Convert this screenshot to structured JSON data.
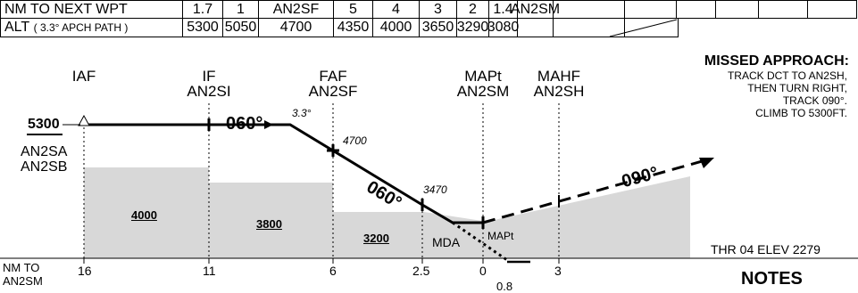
{
  "table": {
    "row1_label": "NM TO NEXT WPT",
    "row1_values": [
      "1.7",
      "1",
      "AN2SF",
      "5",
      "4",
      "3",
      "2",
      "1.4",
      "AN2SM",
      "",
      "",
      "",
      "",
      ""
    ],
    "row2_label_main": "ALT",
    "row2_label_sub": "( 3.3° APCH PATH )",
    "row2_values": [
      "5300",
      "5050",
      "4700",
      "4350",
      "4000",
      "3650",
      "3290",
      "3080"
    ]
  },
  "missed_approach": {
    "title": "MISSED APPROACH:",
    "lines": [
      "TRACK DCT TO AN2SH,",
      "THEN TURN RIGHT,",
      "TRACK 090°.",
      "CLIMB TO 5300FT."
    ]
  },
  "fixes": {
    "iaf": "IAF",
    "if_top": "IF",
    "if_name": "AN2SI",
    "faf_top": "FAF",
    "faf_name": "AN2SF",
    "mapt_top": "MAPt",
    "mapt_name": "AN2SM",
    "mahf_top": "MAHF",
    "mahf_name": "AN2SH"
  },
  "profile": {
    "initial_alt": "5300",
    "initial_names": [
      "AN2SA",
      "AN2SB"
    ],
    "course_inbound_1": "060°",
    "course_inbound_2": "060°",
    "course_missed": "090°",
    "glide_angle": "3.3°",
    "faf_alt": "4700",
    "step_alt": "3470",
    "mda_label": "MDA",
    "mapt_label": "MAPt",
    "msa_1": "4000",
    "msa_2": "3800",
    "msa_3": "3200",
    "threshold": "THR 04 ELEV 2279",
    "partial_value": "0.8"
  },
  "distance_scale": {
    "label_line1": "NM TO",
    "label_line2": "AN2SM",
    "ticks": [
      "16",
      "11",
      "6",
      "2.5",
      "0",
      "3"
    ]
  },
  "notes_title": "NOTES"
}
